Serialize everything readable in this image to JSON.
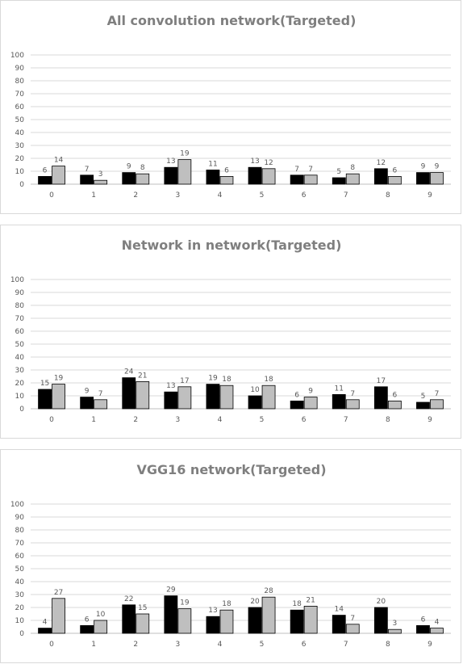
{
  "chart_data": [
    {
      "type": "bar",
      "title": "All convolution  network(Targeted)",
      "categories": [
        "0",
        "1",
        "2",
        "3",
        "4",
        "5",
        "6",
        "7",
        "8",
        "9"
      ],
      "ylim": [
        0,
        100
      ],
      "yticks": [
        "0",
        "10",
        "20",
        "30",
        "40",
        "50",
        "60",
        "70",
        "80",
        "90",
        "100"
      ],
      "grid": true,
      "series": [
        {
          "color": "#000000",
          "values": [
            6,
            7,
            9,
            13,
            11,
            13,
            7,
            5,
            12,
            9
          ]
        },
        {
          "color": "#bfbfbf",
          "values": [
            14,
            3,
            8,
            19,
            6,
            12,
            7,
            8,
            6,
            9
          ]
        }
      ]
    },
    {
      "type": "bar",
      "title": "Network  in network(Targeted)",
      "categories": [
        "0",
        "1",
        "2",
        "3",
        "4",
        "5",
        "6",
        "7",
        "8",
        "9"
      ],
      "ylim": [
        0,
        100
      ],
      "yticks": [
        "0",
        "10",
        "20",
        "30",
        "40",
        "50",
        "60",
        "70",
        "80",
        "90",
        "100"
      ],
      "grid": true,
      "series": [
        {
          "color": "#000000",
          "values": [
            15,
            9,
            24,
            13,
            19,
            10,
            6,
            11,
            17,
            5
          ]
        },
        {
          "color": "#bfbfbf",
          "values": [
            19,
            7,
            21,
            17,
            18,
            18,
            9,
            7,
            6,
            7
          ]
        }
      ]
    },
    {
      "type": "bar",
      "title": "VGG16 network(Targeted)",
      "categories": [
        "0",
        "1",
        "2",
        "3",
        "4",
        "5",
        "6",
        "7",
        "8",
        "9"
      ],
      "ylim": [
        0,
        100
      ],
      "yticks": [
        "0",
        "10",
        "20",
        "30",
        "40",
        "50",
        "60",
        "70",
        "80",
        "90",
        "100"
      ],
      "grid": true,
      "series": [
        {
          "color": "#000000",
          "values": [
            4,
            6,
            22,
            29,
            13,
            20,
            18,
            14,
            20,
            6
          ]
        },
        {
          "color": "#bfbfbf",
          "values": [
            27,
            10,
            15,
            19,
            18,
            28,
            21,
            7,
            3,
            4
          ]
        }
      ]
    }
  ]
}
